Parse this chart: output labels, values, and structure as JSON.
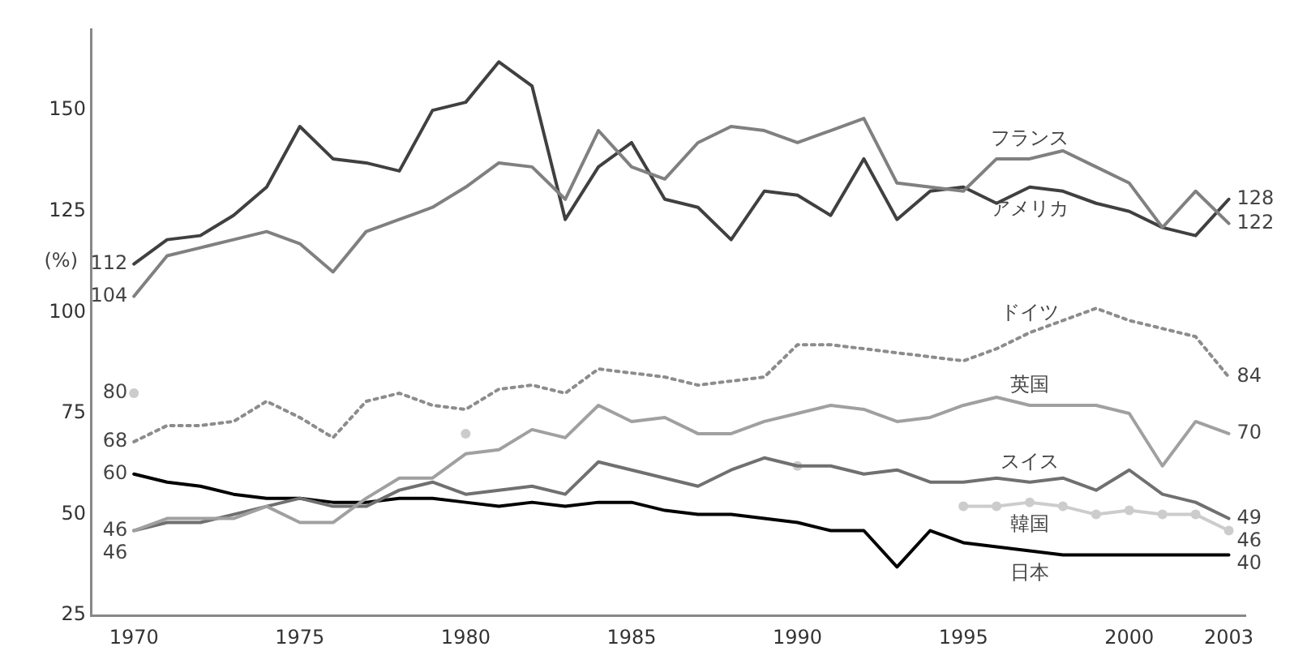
{
  "chart_data": {
    "type": "line",
    "ylabel": "(%)",
    "x": [
      1970,
      1971,
      1972,
      1973,
      1974,
      1975,
      1976,
      1977,
      1978,
      1979,
      1980,
      1981,
      1982,
      1983,
      1984,
      1985,
      1986,
      1987,
      1988,
      1989,
      1990,
      1991,
      1992,
      1993,
      1994,
      1995,
      1996,
      1997,
      1998,
      1999,
      2000,
      2001,
      2002,
      2003
    ],
    "xlim": [
      1968.7,
      2003.5
    ],
    "xticks": [
      1970,
      1975,
      1980,
      1985,
      1990,
      1995,
      2000,
      2003
    ],
    "ylim": [
      25,
      170
    ],
    "yticks": [
      25,
      50,
      75,
      100,
      125,
      150
    ],
    "grid": false,
    "legend": false,
    "marker": "none",
    "line_style": "solid",
    "series": [
      {
        "name": "フランス",
        "color": "#808080",
        "values": [
          104,
          114,
          116,
          118,
          120,
          117,
          110,
          120,
          123,
          126,
          131,
          137,
          136,
          128,
          145,
          136,
          133,
          142,
          146,
          145,
          142,
          145,
          148,
          132,
          131,
          130,
          138,
          138,
          140,
          136,
          132,
          121,
          130,
          122
        ],
        "value_labels": [
          "104",
          null,
          null,
          null,
          null,
          null,
          null,
          null,
          null,
          null,
          null,
          null,
          null,
          null,
          null,
          null,
          null,
          null,
          null,
          null,
          null,
          null,
          null,
          null,
          null,
          null,
          null,
          null,
          null,
          null,
          null,
          null,
          null,
          "122"
        ]
      },
      {
        "name": "アメリカ",
        "color": "#404040",
        "values": [
          112,
          118,
          119,
          124,
          131,
          146,
          138,
          137,
          135,
          150,
          152,
          162,
          156,
          123,
          136,
          142,
          128,
          126,
          118,
          130,
          129,
          124,
          138,
          123,
          130,
          131,
          127,
          131,
          130,
          127,
          125,
          121,
          119,
          128
        ],
        "value_labels": [
          "112",
          null,
          null,
          null,
          null,
          null,
          null,
          null,
          null,
          null,
          null,
          null,
          null,
          null,
          null,
          null,
          null,
          null,
          null,
          null,
          null,
          null,
          null,
          null,
          null,
          null,
          null,
          null,
          null,
          null,
          null,
          null,
          null,
          "128"
        ]
      },
      {
        "name": "ドイツ",
        "color": "#8c8c8c",
        "line_style": "dotted",
        "values": [
          68,
          72,
          72,
          73,
          78,
          74,
          69,
          78,
          80,
          77,
          76,
          81,
          82,
          80,
          86,
          85,
          84,
          82,
          83,
          84,
          92,
          92,
          91,
          90,
          89,
          88,
          91,
          95,
          98,
          101,
          98,
          96,
          94,
          84
        ],
        "value_labels": [
          "68",
          null,
          null,
          null,
          null,
          null,
          null,
          null,
          null,
          null,
          null,
          null,
          null,
          null,
          null,
          null,
          null,
          null,
          null,
          null,
          null,
          null,
          null,
          null,
          null,
          null,
          null,
          null,
          null,
          null,
          null,
          null,
          null,
          "84"
        ]
      },
      {
        "name": "英国",
        "color": "#a0a0a0",
        "values": [
          46,
          49,
          49,
          49,
          52,
          48,
          48,
          54,
          59,
          59,
          65,
          66,
          71,
          69,
          77,
          73,
          74,
          70,
          70,
          73,
          75,
          77,
          76,
          73,
          74,
          77,
          79,
          77,
          77,
          77,
          75,
          62,
          73,
          70
        ],
        "value_labels": [
          "46",
          null,
          null,
          null,
          null,
          null,
          null,
          null,
          null,
          null,
          null,
          null,
          null,
          null,
          null,
          null,
          null,
          null,
          null,
          null,
          null,
          null,
          null,
          null,
          null,
          null,
          null,
          null,
          null,
          null,
          null,
          null,
          null,
          "70"
        ]
      },
      {
        "name": "スイス",
        "color": "#707070",
        "values": [
          46,
          48,
          48,
          50,
          52,
          54,
          52,
          52,
          56,
          58,
          55,
          56,
          57,
          55,
          63,
          61,
          59,
          57,
          61,
          64,
          62,
          62,
          60,
          61,
          58,
          58,
          59,
          58,
          59,
          56,
          61,
          55,
          53,
          49
        ],
        "value_labels": [
          "46",
          null,
          null,
          null,
          null,
          null,
          null,
          null,
          null,
          null,
          null,
          null,
          null,
          null,
          null,
          null,
          null,
          null,
          null,
          null,
          null,
          null,
          null,
          null,
          null,
          null,
          null,
          null,
          null,
          null,
          null,
          null,
          null,
          "49"
        ]
      },
      {
        "name": "韓国",
        "color": "#cccccc",
        "marker": "circle",
        "values": [
          80,
          null,
          null,
          null,
          null,
          null,
          null,
          null,
          null,
          null,
          70,
          null,
          null,
          null,
          null,
          null,
          null,
          null,
          null,
          null,
          62,
          null,
          null,
          null,
          null,
          52,
          52,
          53,
          52,
          50,
          51,
          50,
          50,
          46
        ],
        "value_labels": [
          "80",
          null,
          null,
          null,
          null,
          null,
          null,
          null,
          null,
          null,
          null,
          null,
          null,
          null,
          null,
          null,
          null,
          null,
          null,
          null,
          null,
          null,
          null,
          null,
          null,
          null,
          null,
          null,
          null,
          null,
          null,
          null,
          null,
          "46"
        ]
      },
      {
        "name": "日本",
        "color": "#000000",
        "values": [
          60,
          58,
          57,
          55,
          54,
          54,
          53,
          53,
          54,
          54,
          53,
          52,
          53,
          52,
          53,
          53,
          51,
          50,
          50,
          49,
          48,
          46,
          46,
          37,
          46,
          43,
          42,
          41,
          40,
          40,
          40,
          40,
          40,
          40
        ],
        "value_labels": [
          "60",
          null,
          null,
          null,
          null,
          null,
          null,
          null,
          null,
          null,
          null,
          null,
          null,
          null,
          null,
          null,
          null,
          null,
          null,
          null,
          null,
          null,
          null,
          null,
          null,
          null,
          null,
          null,
          null,
          null,
          null,
          null,
          null,
          "40"
        ]
      }
    ]
  }
}
